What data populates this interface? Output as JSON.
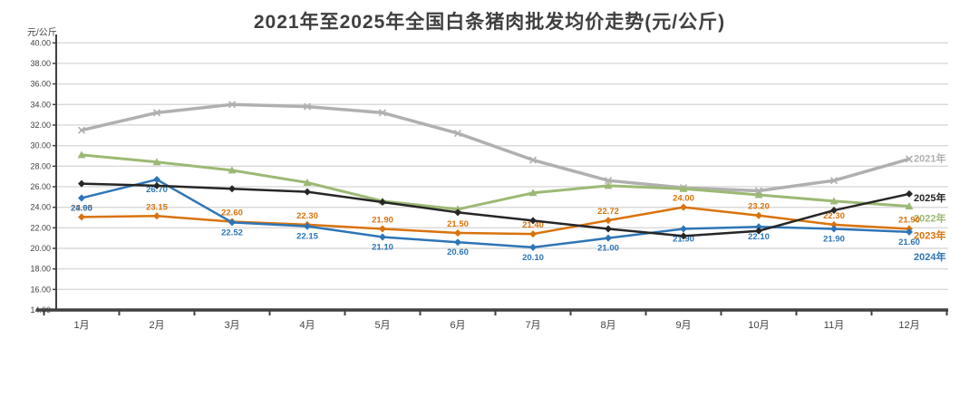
{
  "title": "2021年至2025年全国白条猪肉批发均价走势(元/公斤)",
  "y_axis": {
    "unit": "元/公斤",
    "min": 14,
    "max": 40,
    "step": 2
  },
  "x_axis": {
    "categories": [
      "1月",
      "2月",
      "3月",
      "4月",
      "5月",
      "6月",
      "7月",
      "8月",
      "9月",
      "10月",
      "11月",
      "12月"
    ]
  },
  "chart_data": {
    "type": "line",
    "title": "2021年至2025年全国白条猪肉批发均价走势(元/公斤)",
    "xlabel": "",
    "ylabel": "元/公斤",
    "ylim": [
      14,
      40
    ],
    "grid": true,
    "legend_position": "line-end-labels",
    "categories": [
      "1月",
      "2月",
      "3月",
      "4月",
      "5月",
      "6月",
      "7月",
      "8月",
      "9月",
      "10月",
      "11月",
      "12月"
    ],
    "series": [
      {
        "name": "2021年",
        "color": "#b0b0b0",
        "marker": "x",
        "line_width": 3.5,
        "show_point_labels": false,
        "end_label_dy": 0,
        "values": [
          31.5,
          33.2,
          34.0,
          33.8,
          33.2,
          31.2,
          28.6,
          26.6,
          25.9,
          25.6,
          26.6,
          28.7
        ]
      },
      {
        "name": "2022年",
        "color": "#9cb974",
        "marker": "triangle",
        "line_width": 3,
        "show_point_labels": false,
        "end_label_dy": 14,
        "values": [
          29.1,
          28.4,
          27.6,
          26.4,
          24.6,
          23.8,
          25.4,
          26.1,
          25.8,
          25.2,
          24.6,
          24.1
        ]
      },
      {
        "name": "2023年",
        "color": "#d9730d",
        "marker": "diamond",
        "line_width": 2.5,
        "show_point_labels": true,
        "label_dy": -7,
        "end_label_dy": 8,
        "values": [
          23.05,
          23.15,
          22.6,
          22.3,
          21.9,
          21.5,
          21.4,
          22.72,
          24.0,
          23.2,
          22.3,
          21.9
        ]
      },
      {
        "name": "2024年",
        "color": "#2e75b6",
        "marker": "diamond",
        "line_width": 2.5,
        "show_point_labels": true,
        "label_dy": 14,
        "end_label_dy": 28,
        "values": [
          24.9,
          26.7,
          22.52,
          22.15,
          21.1,
          20.6,
          20.1,
          21.0,
          21.9,
          22.1,
          21.9,
          21.6
        ]
      },
      {
        "name": "2025年",
        "color": "#262626",
        "marker": "diamond",
        "line_width": 2.5,
        "show_point_labels": false,
        "end_label_dy": 5,
        "values": [
          26.3,
          26.1,
          25.8,
          25.5,
          24.5,
          23.5,
          22.7,
          21.9,
          21.2,
          21.7,
          23.7,
          25.3
        ]
      }
    ]
  },
  "colors": {
    "gridline": "#d9d9d9",
    "axis": "#404040",
    "tick_text": "#404040",
    "title_text": "#3f3f3f"
  }
}
